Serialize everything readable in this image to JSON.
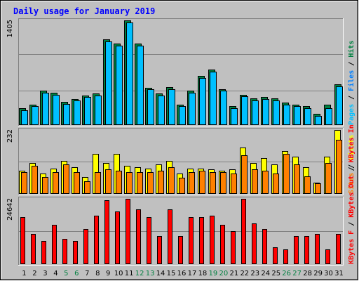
{
  "chart_data": {
    "type": "bar",
    "title": "Daily usage for January 2019",
    "colors": {
      "hits": "#008040",
      "files": "#0080ff",
      "pages": "#00c0ff",
      "visits": "#ffff00",
      "sites": "#ff8000",
      "kbin": "#ff0000",
      "kbout": "#ff0000",
      "kbf": "#ff0000",
      "weekend_label": "#008040",
      "title": "#0000ff"
    },
    "days": [
      "1",
      "2",
      "3",
      "4",
      "5",
      "6",
      "7",
      "8",
      "9",
      "10",
      "11",
      "12",
      "13",
      "14",
      "15",
      "16",
      "17",
      "18",
      "19",
      "20",
      "21",
      "22",
      "23",
      "24",
      "25",
      "26",
      "27",
      "28",
      "29",
      "30",
      "31"
    ],
    "weekend_days": [
      "5",
      "6",
      "12",
      "13",
      "19",
      "20",
      "26",
      "27"
    ],
    "usage": {
      "max_label": "1405",
      "legend": [
        {
          "text": "Hits",
          "key": "hits"
        },
        {
          "text": "Files",
          "key": "files"
        },
        {
          "text": "Pages",
          "key": "pages"
        }
      ],
      "series": [
        {
          "name": "Hits",
          "values": [
            228,
            276,
            461,
            432,
            313,
            351,
            399,
            425,
            1146,
            1094,
            1405,
            1094,
            504,
            425,
            506,
            276,
            461,
            659,
            746,
            485,
            253,
            409,
            354,
            378,
            354,
            302,
            276,
            253,
            151,
            276,
            551
          ]
        },
        {
          "name": "Files",
          "values": [
            202,
            253,
            434,
            409,
            287,
            326,
            375,
            399,
            1120,
            1068,
            1379,
            1068,
            480,
            399,
            480,
            251,
            434,
            634,
            720,
            461,
            228,
            383,
            330,
            352,
            326,
            276,
            251,
            228,
            125,
            228,
            523
          ]
        }
      ]
    },
    "visits": {
      "max_label": "232",
      "legend": [
        {
          "text": "Visits",
          "key": "visits"
        },
        {
          "text": "Sites",
          "key": "sites"
        }
      ],
      "series": [
        {
          "name": "Visits",
          "values": [
            84,
            112,
            73,
            93,
            121,
            98,
            61,
            145,
            112,
            145,
            102,
            98,
            93,
            107,
            121,
            74,
            93,
            93,
            89,
            84,
            89,
            168,
            112,
            131,
            107,
            155,
            136,
            98,
            42,
            136,
            232
          ]
        },
        {
          "name": "Sites",
          "values": [
            79,
            102,
            61,
            79,
            107,
            79,
            47,
            79,
            89,
            84,
            79,
            79,
            79,
            84,
            98,
            59,
            79,
            84,
            79,
            79,
            75,
            140,
            89,
            84,
            75,
            145,
            107,
            65,
            37,
            112,
            196
          ]
        }
      ]
    },
    "kbytes": {
      "max_label": "24642",
      "legend": [
        {
          "text": "KBytes In",
          "key": "kbin"
        },
        {
          "text": "KBytes Out",
          "key": "kbout"
        },
        {
          "text": "KBytes F",
          "key": "kbf"
        }
      ],
      "series": [
        {
          "name": "KBytes",
          "values": [
            17746,
            11330,
            8811,
            14930,
            9658,
            8811,
            13185,
            18159,
            24235,
            19796,
            24642,
            20625,
            17746,
            10507,
            20625,
            10507,
            17746,
            17746,
            18159,
            14930,
            12375,
            24642,
            15354,
            13185,
            6297,
            5445,
            10507,
            10507,
            11330,
            5445,
            11330
          ]
        }
      ]
    }
  }
}
